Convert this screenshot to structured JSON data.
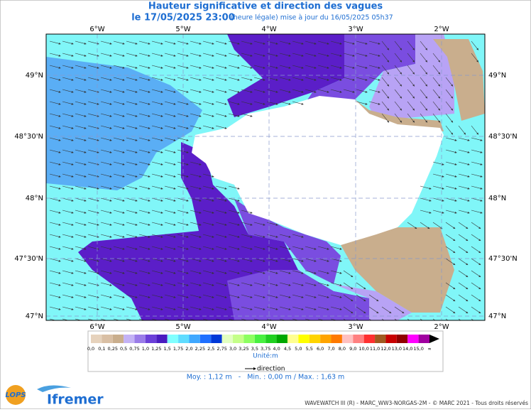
{
  "header": {
    "title": "Hauteur significative et direction des vagues",
    "date": "le 17/05/2025 23:00",
    "update": "(heure légale) mise à jour du 16/05/2025 05h37"
  },
  "map": {
    "longitudes": [
      "6°W",
      "5°W",
      "4°W",
      "3°W",
      "2°W"
    ],
    "latitudes": [
      "49°N",
      "48°30'N",
      "48°N",
      "47°30'N",
      "47°N"
    ]
  },
  "colorbar": {
    "labels": [
      "0,0",
      "0,1",
      "0,25",
      "0,5",
      "0,75",
      "1,0",
      "1,25",
      "1,5",
      "1,75",
      "2,0",
      "2,25",
      "2,5",
      "2,75",
      "3,0",
      "3,25",
      "3,5",
      "3,75",
      "4,0",
      "4,5",
      "5,0",
      "5,5",
      "6,0",
      "7,0",
      "8,0",
      "9,0",
      "10,0",
      "11,0",
      "12,0",
      "13,0",
      "14,0",
      "15,0",
      "∞"
    ],
    "colors": [
      "#e6d2bc",
      "#d9bfa4",
      "#c9ae8d",
      "#c3b2f5",
      "#9a7ce8",
      "#6b3fd8",
      "#4a1cc0",
      "#80ffff",
      "#5fdcff",
      "#3fa8ff",
      "#1f6fff",
      "#0038d8",
      "#e2ffc0",
      "#c4ff88",
      "#8cff60",
      "#48f040",
      "#20d020",
      "#00a800",
      "#ffff90",
      "#ffff00",
      "#ffd400",
      "#ffa400",
      "#ff7a00",
      "#ffc0c0",
      "#ff8080",
      "#ff3030",
      "#a05a20",
      "#c80000",
      "#900000",
      "#ff00ff",
      "#a000a0"
    ],
    "unit": "Unité:m",
    "direction": "direction"
  },
  "footer": {
    "stats": "Moy. : 1,12 m   -   Min. : 0,00 m / Max. : 1,63 m",
    "credits": "WAVEWATCH III (R) - MARC_WW3-NORGAS-2M - © MARC 2021 - Tous droits réservés",
    "lops": "LOPS",
    "ifremer": "Ifremer"
  }
}
